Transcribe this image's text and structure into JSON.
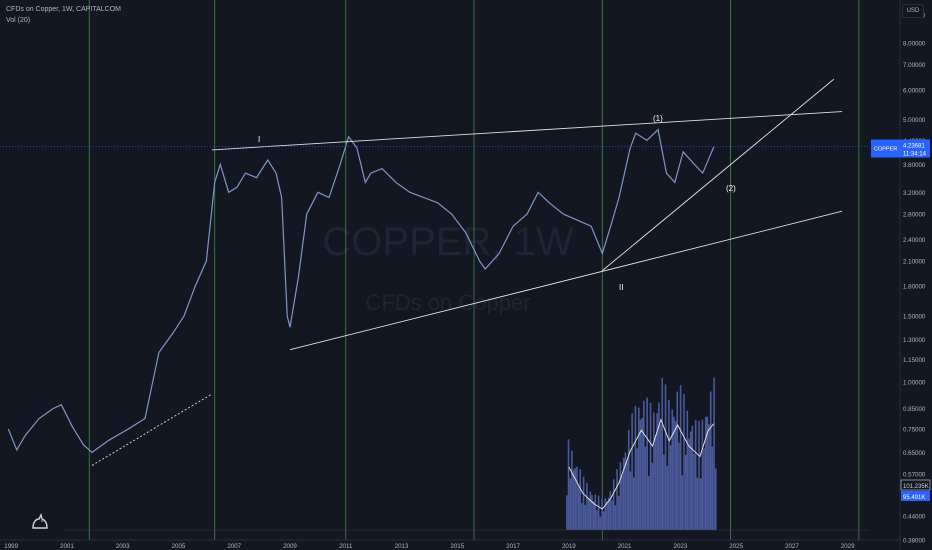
{
  "legend": {
    "line1": "CFDs on Copper, 1W, CAPITALCOM",
    "line2": "Vol (20)"
  },
  "currency": "USD",
  "watermark": {
    "symbol": "COPPER, 1W",
    "name": "CFDs on Copper"
  },
  "price_tag": {
    "symbol": "COPPER",
    "price": "4.23681",
    "countdown": "11:34:14"
  },
  "volume_tags": [
    "101.235K",
    "95.491K"
  ],
  "wave_labels": {
    "w1": "(1)",
    "w2": "(2)",
    "I": "I",
    "II": "II"
  },
  "colors": {
    "background": "#131722",
    "price_series": "#7e95c9",
    "vertical_lines": "#4caf50",
    "trendlines": "#e0e0e0",
    "price_line": "#2962ff",
    "volume_bars": "#4a5a9a",
    "volume_ma": "#e0e0e0",
    "axis_text": "#b2b5be"
  },
  "chart_data": {
    "type": "line",
    "title": "CFDs on Copper, 1W, CAPITALCOM",
    "xlabel": "",
    "ylabel": "",
    "y_scale": "log",
    "ylim": [
      0.38,
      10.4
    ],
    "xlim": [
      1998.6,
      2029.8
    ],
    "x_ticks": [
      "1999",
      "2001",
      "2003",
      "2005",
      "2007",
      "2009",
      "2011",
      "2013",
      "2015",
      "2017",
      "2019",
      "2021",
      "2023",
      "2025",
      "2027",
      "2029"
    ],
    "y_ticks": [
      "9.50000",
      "8.00000",
      "7.00000",
      "6.00000",
      "5.00000",
      "4.40000",
      "3.80000",
      "3.20000",
      "2.80000",
      "2.40000",
      "2.10000",
      "1.80000",
      "1.50000",
      "1.30000",
      "1.15000",
      "1.00000",
      "0.85000",
      "0.75000",
      "0.65000",
      "0.57000",
      "0.50000",
      "0.44000",
      "0.38000"
    ],
    "grid": false,
    "series": [
      {
        "name": "CFDs on Copper",
        "x": [
          1998.9,
          1999.2,
          1999.5,
          2000.0,
          2000.5,
          2000.8,
          2001.2,
          2001.6,
          2001.9,
          2002.5,
          2003.2,
          2003.8,
          2004.3,
          2004.8,
          2005.2,
          2005.6,
          2006.0,
          2006.3,
          2006.5,
          2006.8,
          2007.1,
          2007.4,
          2007.8,
          2008.2,
          2008.5,
          2008.7,
          2008.9,
          2009.0,
          2009.3,
          2009.6,
          2010.0,
          2010.4,
          2010.8,
          2011.1,
          2011.4,
          2011.7,
          2011.9,
          2012.3,
          2012.8,
          2013.3,
          2013.8,
          2014.3,
          2014.8,
          2015.3,
          2015.8,
          2016.0,
          2016.5,
          2017.0,
          2017.5,
          2017.9,
          2018.3,
          2018.8,
          2019.3,
          2019.8,
          2020.2,
          2020.5,
          2020.8,
          2021.2,
          2021.4,
          2021.8,
          2022.2,
          2022.5,
          2022.8,
          2023.1,
          2023.5,
          2023.8,
          2024.2
        ],
        "values": [
          0.75,
          0.66,
          0.72,
          0.8,
          0.85,
          0.87,
          0.76,
          0.68,
          0.65,
          0.7,
          0.75,
          0.8,
          1.2,
          1.35,
          1.5,
          1.8,
          2.1,
          3.4,
          3.8,
          3.2,
          3.3,
          3.6,
          3.5,
          3.9,
          3.6,
          3.1,
          1.5,
          1.4,
          1.9,
          2.8,
          3.2,
          3.1,
          3.8,
          4.5,
          4.2,
          3.4,
          3.6,
          3.7,
          3.4,
          3.2,
          3.1,
          3.0,
          2.8,
          2.5,
          2.1,
          2.0,
          2.2,
          2.6,
          2.8,
          3.2,
          3.0,
          2.8,
          2.7,
          2.6,
          2.2,
          2.6,
          3.1,
          4.2,
          4.6,
          4.4,
          4.7,
          3.6,
          3.4,
          4.1,
          3.8,
          3.6,
          4.23
        ]
      },
      {
        "name": "Vol (20)",
        "x": [
          2019.0,
          2019.5,
          2019.9,
          2020.2,
          2020.5,
          2020.8,
          2021.2,
          2021.6,
          2022.0,
          2022.3,
          2022.6,
          2022.9,
          2023.3,
          2023.7,
          2024.0,
          2024.2
        ],
        "values": [
          60,
          35,
          25,
          20,
          30,
          45,
          75,
          95,
          80,
          105,
          85,
          100,
          80,
          70,
          95,
          101.235
        ]
      }
    ],
    "price_line": 4.23681
  }
}
